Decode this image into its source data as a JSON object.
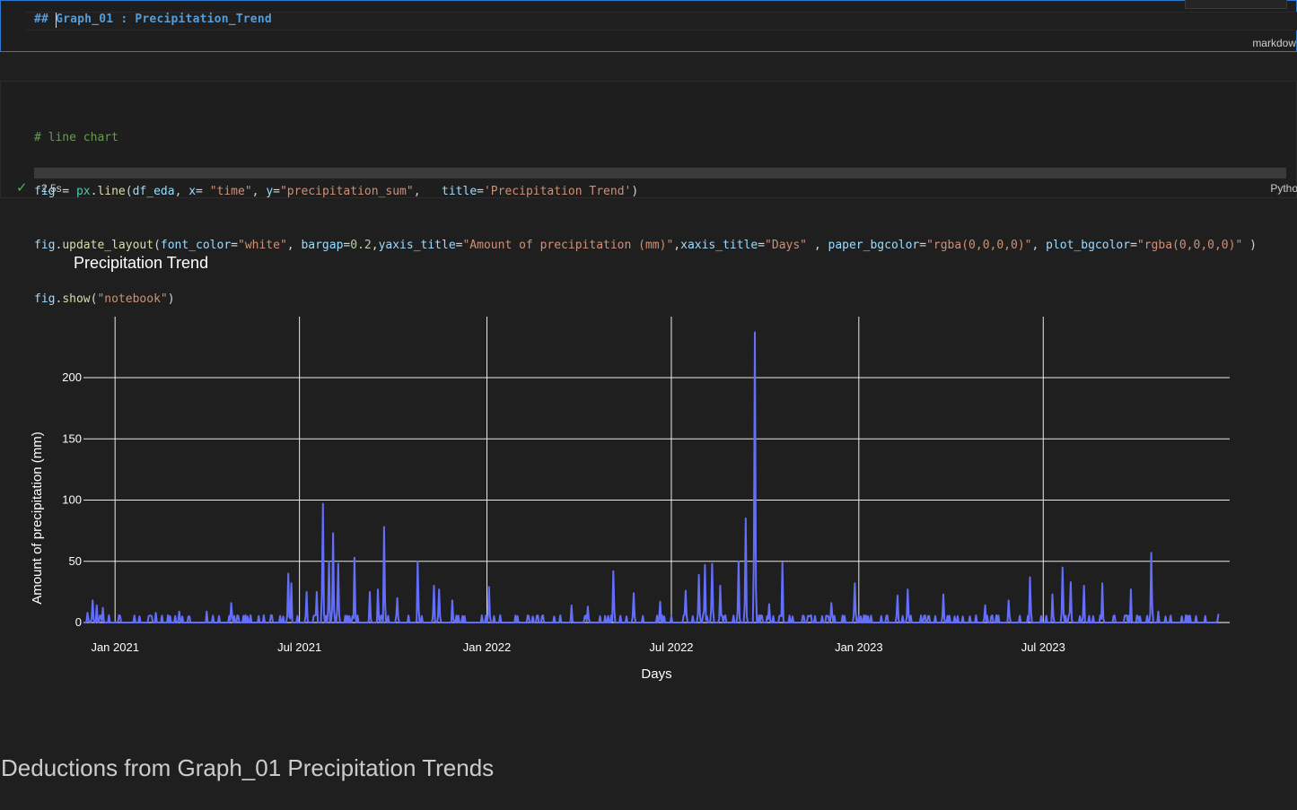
{
  "markdown_cell": {
    "source": "## Graph_01 : Precipitation_Trend",
    "language_label": "markdow"
  },
  "code_cell": {
    "lines": [
      "# line chart",
      "fig = px.line(df_eda, x= \"time\", y=\"precipitation_sum\",   title='Precipitation Trend')",
      "fig.update_layout(font_color=\"white\", bargap=0.2,yaxis_title=\"Amount of precipitation (mm)\",xaxis_title=\"Days\" , paper_bgcolor=\"rgba(0,0,0,0)\", plot_bgcolor=\"rgba(0,0,0,0)\" )",
      "fig.show(\"notebook\")"
    ],
    "status_icon": "check-icon",
    "exec_time": "2.5s",
    "kernel_label": "Pytho"
  },
  "chart_data": {
    "type": "line",
    "title": "Precipitation Trend",
    "xlabel": "Days",
    "ylabel": "Amount of precipitation (mm)",
    "x_ticks": [
      "Jan 2021",
      "Jul 2021",
      "Jan 2022",
      "Jul 2022",
      "Jan 2023",
      "Jul 2023"
    ],
    "y_ticks": [
      0,
      50,
      100,
      150,
      200
    ],
    "ylim": [
      0,
      240
    ],
    "xlim": [
      "2020-12-01",
      "2023-12-31"
    ],
    "grid": true,
    "line_color": "#636efa",
    "peaks": [
      {
        "x": "2020-12-05",
        "y": 8
      },
      {
        "x": "2020-12-10",
        "y": 18
      },
      {
        "x": "2020-12-14",
        "y": 14
      },
      {
        "x": "2020-12-20",
        "y": 12
      },
      {
        "x": "2021-01-05",
        "y": 6
      },
      {
        "x": "2021-02-10",
        "y": 8
      },
      {
        "x": "2021-03-05",
        "y": 9
      },
      {
        "x": "2021-04-01",
        "y": 9
      },
      {
        "x": "2021-04-25",
        "y": 16
      },
      {
        "x": "2021-06-03",
        "y": 6
      },
      {
        "x": "2021-06-20",
        "y": 40
      },
      {
        "x": "2021-06-23",
        "y": 32
      },
      {
        "x": "2021-07-08",
        "y": 25
      },
      {
        "x": "2021-07-18",
        "y": 25
      },
      {
        "x": "2021-07-24",
        "y": 97
      },
      {
        "x": "2021-07-30",
        "y": 50
      },
      {
        "x": "2021-08-03",
        "y": 73
      },
      {
        "x": "2021-08-08",
        "y": 48
      },
      {
        "x": "2021-08-24",
        "y": 53
      },
      {
        "x": "2021-09-08",
        "y": 25
      },
      {
        "x": "2021-09-16",
        "y": 27
      },
      {
        "x": "2021-09-22",
        "y": 78
      },
      {
        "x": "2021-10-05",
        "y": 20
      },
      {
        "x": "2021-10-25",
        "y": 50
      },
      {
        "x": "2021-11-10",
        "y": 30
      },
      {
        "x": "2021-11-15",
        "y": 27
      },
      {
        "x": "2021-11-28",
        "y": 18
      },
      {
        "x": "2022-01-03",
        "y": 29
      },
      {
        "x": "2022-02-15",
        "y": 5
      },
      {
        "x": "2022-03-25",
        "y": 14
      },
      {
        "x": "2022-04-10",
        "y": 13
      },
      {
        "x": "2022-05-05",
        "y": 42
      },
      {
        "x": "2022-05-25",
        "y": 24
      },
      {
        "x": "2022-06-20",
        "y": 17
      },
      {
        "x": "2022-07-15",
        "y": 26
      },
      {
        "x": "2022-07-28",
        "y": 39
      },
      {
        "x": "2022-08-03",
        "y": 47
      },
      {
        "x": "2022-08-10",
        "y": 48
      },
      {
        "x": "2022-08-18",
        "y": 30
      },
      {
        "x": "2022-09-05",
        "y": 50
      },
      {
        "x": "2022-09-12",
        "y": 85
      },
      {
        "x": "2022-09-21",
        "y": 237
      },
      {
        "x": "2022-10-05",
        "y": 15
      },
      {
        "x": "2022-10-18",
        "y": 49
      },
      {
        "x": "2022-11-15",
        "y": 6
      },
      {
        "x": "2022-12-05",
        "y": 16
      },
      {
        "x": "2022-12-28",
        "y": 32
      },
      {
        "x": "2023-02-08",
        "y": 22
      },
      {
        "x": "2023-02-18",
        "y": 27
      },
      {
        "x": "2023-03-25",
        "y": 23
      },
      {
        "x": "2023-05-05",
        "y": 14
      },
      {
        "x": "2023-05-28",
        "y": 18
      },
      {
        "x": "2023-06-18",
        "y": 37
      },
      {
        "x": "2023-07-10",
        "y": 23
      },
      {
        "x": "2023-07-20",
        "y": 45
      },
      {
        "x": "2023-07-28",
        "y": 33
      },
      {
        "x": "2023-08-10",
        "y": 30
      },
      {
        "x": "2023-08-28",
        "y": 32
      },
      {
        "x": "2023-09-25",
        "y": 27
      },
      {
        "x": "2023-10-15",
        "y": 57
      },
      {
        "x": "2023-10-22",
        "y": 9
      },
      {
        "x": "2023-12-20",
        "y": 7
      }
    ]
  },
  "deductions_heading": "Deductions from Graph_01 Precipitation Trends"
}
